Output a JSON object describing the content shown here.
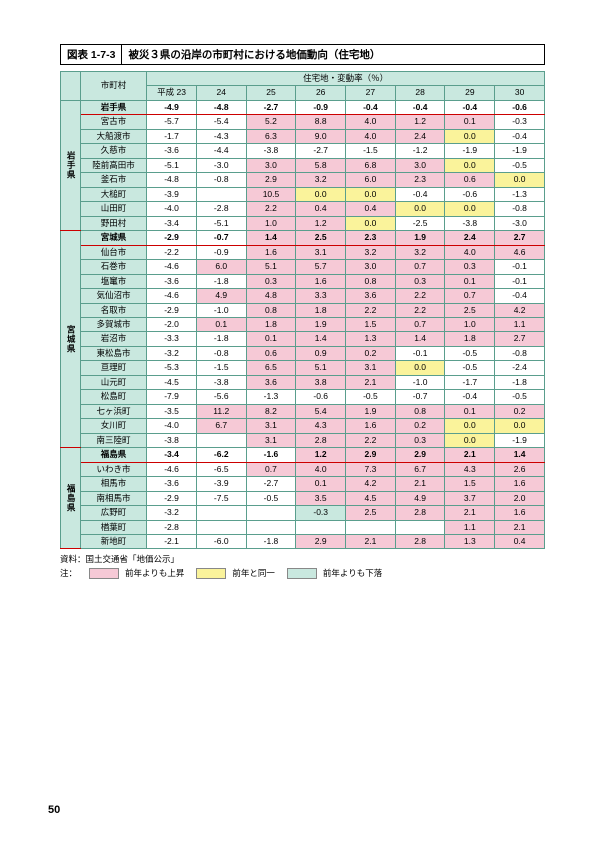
{
  "page_number": "50",
  "fig_no": "図表 1-7-3",
  "fig_title": "被災３県の沿岸の市町村における地価動向（住宅地）",
  "col_muni": "市町村",
  "col_group": "住宅地・変動率（％）",
  "years": [
    "平成 23",
    "24",
    "25",
    "26",
    "27",
    "28",
    "29",
    "30"
  ],
  "src": "資料：国土交通省「地価公示」",
  "legend_label": "注：",
  "legend_up": "前年よりも上昇",
  "legend_same": "前年と同一",
  "legend_down": "前年よりも下落",
  "colors": {
    "up": "#f6c9d6",
    "same": "#faf39b",
    "down": "#c9e8df"
  },
  "prefs": [
    {
      "name": "岩手県",
      "rows": [
        {
          "m": "岩手県",
          "bold": true,
          "red": true,
          "v": [
            [
              "-4.9",
              ""
            ],
            [
              "-4.8",
              ""
            ],
            [
              "-2.7",
              ""
            ],
            [
              "-0.9",
              ""
            ],
            [
              "-0.4",
              ""
            ],
            [
              "-0.4",
              ""
            ],
            [
              "-0.4",
              ""
            ],
            [
              "-0.6",
              ""
            ]
          ]
        },
        {
          "m": "宮古市",
          "v": [
            [
              "-5.7",
              ""
            ],
            [
              "-5.4",
              ""
            ],
            [
              "5.2",
              "p"
            ],
            [
              "8.8",
              "p"
            ],
            [
              "4.0",
              "p"
            ],
            [
              "1.2",
              "p"
            ],
            [
              "0.1",
              "p"
            ],
            [
              "-0.3",
              ""
            ]
          ]
        },
        {
          "m": "大船渡市",
          "v": [
            [
              "-1.7",
              ""
            ],
            [
              "-4.3",
              ""
            ],
            [
              "6.3",
              "p"
            ],
            [
              "9.0",
              "p"
            ],
            [
              "4.0",
              "p"
            ],
            [
              "2.4",
              "p"
            ],
            [
              "0.0",
              "y"
            ],
            [
              "-0.4",
              ""
            ]
          ]
        },
        {
          "m": "久慈市",
          "v": [
            [
              "-3.6",
              ""
            ],
            [
              "-4.4",
              ""
            ],
            [
              "-3.8",
              ""
            ],
            [
              "-2.7",
              ""
            ],
            [
              "-1.5",
              ""
            ],
            [
              "-1.2",
              ""
            ],
            [
              "-1.9",
              ""
            ],
            [
              "-1.9",
              ""
            ]
          ]
        },
        {
          "m": "陸前高田市",
          "v": [
            [
              "-5.1",
              ""
            ],
            [
              "-3.0",
              ""
            ],
            [
              "3.0",
              "p"
            ],
            [
              "5.8",
              "p"
            ],
            [
              "6.8",
              "p"
            ],
            [
              "3.0",
              "p"
            ],
            [
              "0.0",
              "y"
            ],
            [
              "-0.5",
              ""
            ]
          ]
        },
        {
          "m": "釜石市",
          "v": [
            [
              "-4.8",
              ""
            ],
            [
              "-0.8",
              ""
            ],
            [
              "2.9",
              "p"
            ],
            [
              "3.2",
              "p"
            ],
            [
              "6.0",
              "p"
            ],
            [
              "2.3",
              "p"
            ],
            [
              "0.6",
              "p"
            ],
            [
              "0.0",
              "y"
            ]
          ]
        },
        {
          "m": "大槌町",
          "v": [
            [
              "-3.9",
              ""
            ],
            [
              "",
              ""
            ],
            [
              "10.5",
              "p"
            ],
            [
              "0.0",
              "y"
            ],
            [
              "0.0",
              "y"
            ],
            [
              "-0.4",
              ""
            ],
            [
              "-0.6",
              ""
            ],
            [
              "-1.3",
              ""
            ]
          ]
        },
        {
          "m": "山田町",
          "v": [
            [
              "-4.0",
              ""
            ],
            [
              "-2.8",
              ""
            ],
            [
              "2.2",
              "p"
            ],
            [
              "0.4",
              "p"
            ],
            [
              "0.4",
              "p"
            ],
            [
              "0.0",
              "y"
            ],
            [
              "0.0",
              "y"
            ],
            [
              "-0.8",
              ""
            ]
          ]
        },
        {
          "m": "野田村",
          "v": [
            [
              "-3.4",
              ""
            ],
            [
              "-5.1",
              ""
            ],
            [
              "1.0",
              "p"
            ],
            [
              "1.2",
              "p"
            ],
            [
              "0.0",
              "y"
            ],
            [
              "-2.5",
              ""
            ],
            [
              "-3.8",
              ""
            ],
            [
              "-3.0",
              ""
            ]
          ]
        }
      ]
    },
    {
      "name": "宮城県",
      "rows": [
        {
          "m": "宮城県",
          "bold": true,
          "red": true,
          "v": [
            [
              "-2.9",
              ""
            ],
            [
              "-0.7",
              ""
            ],
            [
              "1.4",
              "p"
            ],
            [
              "2.5",
              "p"
            ],
            [
              "2.3",
              "p"
            ],
            [
              "1.9",
              "p"
            ],
            [
              "2.4",
              "p"
            ],
            [
              "2.7",
              "p"
            ]
          ]
        },
        {
          "m": "仙台市",
          "v": [
            [
              "-2.2",
              ""
            ],
            [
              "-0.9",
              ""
            ],
            [
              "1.6",
              "p"
            ],
            [
              "3.1",
              "p"
            ],
            [
              "3.2",
              "p"
            ],
            [
              "3.2",
              "p"
            ],
            [
              "4.0",
              "p"
            ],
            [
              "4.6",
              "p"
            ]
          ]
        },
        {
          "m": "石巻市",
          "v": [
            [
              "-4.6",
              ""
            ],
            [
              "6.0",
              "p"
            ],
            [
              "5.1",
              "p"
            ],
            [
              "5.7",
              "p"
            ],
            [
              "3.0",
              "p"
            ],
            [
              "0.7",
              "p"
            ],
            [
              "0.3",
              "p"
            ],
            [
              "-0.1",
              ""
            ]
          ]
        },
        {
          "m": "塩竃市",
          "v": [
            [
              "-3.6",
              ""
            ],
            [
              "-1.8",
              ""
            ],
            [
              "0.3",
              "p"
            ],
            [
              "1.6",
              "p"
            ],
            [
              "0.8",
              "p"
            ],
            [
              "0.3",
              "p"
            ],
            [
              "0.1",
              "p"
            ],
            [
              "-0.1",
              ""
            ]
          ]
        },
        {
          "m": "気仙沼市",
          "v": [
            [
              "-4.6",
              ""
            ],
            [
              "4.9",
              "p"
            ],
            [
              "4.8",
              "p"
            ],
            [
              "3.3",
              "p"
            ],
            [
              "3.6",
              "p"
            ],
            [
              "2.2",
              "p"
            ],
            [
              "0.7",
              "p"
            ],
            [
              "-0.4",
              ""
            ]
          ]
        },
        {
          "m": "名取市",
          "v": [
            [
              "-2.9",
              ""
            ],
            [
              "-1.0",
              ""
            ],
            [
              "0.8",
              "p"
            ],
            [
              "1.8",
              "p"
            ],
            [
              "2.2",
              "p"
            ],
            [
              "2.2",
              "p"
            ],
            [
              "2.5",
              "p"
            ],
            [
              "4.2",
              "p"
            ]
          ]
        },
        {
          "m": "多賀城市",
          "v": [
            [
              "-2.0",
              ""
            ],
            [
              "0.1",
              "p"
            ],
            [
              "1.8",
              "p"
            ],
            [
              "1.9",
              "p"
            ],
            [
              "1.5",
              "p"
            ],
            [
              "0.7",
              "p"
            ],
            [
              "1.0",
              "p"
            ],
            [
              "1.1",
              "p"
            ]
          ]
        },
        {
          "m": "岩沼市",
          "v": [
            [
              "-3.3",
              ""
            ],
            [
              "-1.8",
              ""
            ],
            [
              "0.1",
              "p"
            ],
            [
              "1.4",
              "p"
            ],
            [
              "1.3",
              "p"
            ],
            [
              "1.4",
              "p"
            ],
            [
              "1.8",
              "p"
            ],
            [
              "2.7",
              "p"
            ]
          ]
        },
        {
          "m": "東松島市",
          "v": [
            [
              "-3.2",
              ""
            ],
            [
              "-0.8",
              ""
            ],
            [
              "0.6",
              "p"
            ],
            [
              "0.9",
              "p"
            ],
            [
              "0.2",
              "p"
            ],
            [
              "-0.1",
              ""
            ],
            [
              "-0.5",
              ""
            ],
            [
              "-0.8",
              ""
            ]
          ]
        },
        {
          "m": "亘理町",
          "v": [
            [
              "-5.3",
              ""
            ],
            [
              "-1.5",
              ""
            ],
            [
              "6.5",
              "p"
            ],
            [
              "5.1",
              "p"
            ],
            [
              "3.1",
              "p"
            ],
            [
              "0.0",
              "y"
            ],
            [
              "-0.5",
              ""
            ],
            [
              "-2.4",
              ""
            ]
          ]
        },
        {
          "m": "山元町",
          "v": [
            [
              "-4.5",
              ""
            ],
            [
              "-3.8",
              ""
            ],
            [
              "3.6",
              "p"
            ],
            [
              "3.8",
              "p"
            ],
            [
              "2.1",
              "p"
            ],
            [
              "-1.0",
              ""
            ],
            [
              "-1.7",
              ""
            ],
            [
              "-1.8",
              ""
            ]
          ]
        },
        {
          "m": "松島町",
          "v": [
            [
              "-7.9",
              ""
            ],
            [
              "-5.6",
              ""
            ],
            [
              "-1.3",
              ""
            ],
            [
              "-0.6",
              ""
            ],
            [
              "-0.5",
              ""
            ],
            [
              "-0.7",
              ""
            ],
            [
              "-0.4",
              ""
            ],
            [
              "-0.5",
              ""
            ]
          ]
        },
        {
          "m": "七ヶ浜町",
          "v": [
            [
              "-3.5",
              ""
            ],
            [
              "11.2",
              "p"
            ],
            [
              "8.2",
              "p"
            ],
            [
              "5.4",
              "p"
            ],
            [
              "1.9",
              "p"
            ],
            [
              "0.8",
              "p"
            ],
            [
              "0.1",
              "p"
            ],
            [
              "0.2",
              "p"
            ]
          ]
        },
        {
          "m": "女川町",
          "v": [
            [
              "-4.0",
              ""
            ],
            [
              "6.7",
              "p"
            ],
            [
              "3.1",
              "p"
            ],
            [
              "4.3",
              "p"
            ],
            [
              "1.6",
              "p"
            ],
            [
              "0.2",
              "p"
            ],
            [
              "0.0",
              "y"
            ],
            [
              "0.0",
              "y"
            ]
          ]
        },
        {
          "m": "南三陸町",
          "v": [
            [
              "-3.8",
              ""
            ],
            [
              "",
              ""
            ],
            [
              "3.1",
              "p"
            ],
            [
              "2.8",
              "p"
            ],
            [
              "2.2",
              "p"
            ],
            [
              "0.3",
              "p"
            ],
            [
              "0.0",
              "y"
            ],
            [
              "-1.9",
              ""
            ]
          ]
        }
      ]
    },
    {
      "name": "福島県",
      "rows": [
        {
          "m": "福島県",
          "bold": true,
          "red": true,
          "v": [
            [
              "-3.4",
              ""
            ],
            [
              "-6.2",
              ""
            ],
            [
              "-1.6",
              ""
            ],
            [
              "1.2",
              "p"
            ],
            [
              "2.9",
              "p"
            ],
            [
              "2.9",
              "p"
            ],
            [
              "2.1",
              "p"
            ],
            [
              "1.4",
              "p"
            ]
          ]
        },
        {
          "m": "いわき市",
          "v": [
            [
              "-4.6",
              ""
            ],
            [
              "-6.5",
              ""
            ],
            [
              "0.7",
              "p"
            ],
            [
              "4.0",
              "p"
            ],
            [
              "7.3",
              "p"
            ],
            [
              "6.7",
              "p"
            ],
            [
              "4.3",
              "p"
            ],
            [
              "2.6",
              "p"
            ]
          ]
        },
        {
          "m": "相馬市",
          "v": [
            [
              "-3.6",
              ""
            ],
            [
              "-3.9",
              ""
            ],
            [
              "-2.7",
              ""
            ],
            [
              "0.1",
              "p"
            ],
            [
              "4.2",
              "p"
            ],
            [
              "2.1",
              "p"
            ],
            [
              "1.5",
              "p"
            ],
            [
              "1.6",
              "p"
            ]
          ]
        },
        {
          "m": "南相馬市",
          "v": [
            [
              "-2.9",
              ""
            ],
            [
              "-7.5",
              ""
            ],
            [
              "-0.5",
              ""
            ],
            [
              "3.5",
              "p"
            ],
            [
              "4.5",
              "p"
            ],
            [
              "4.9",
              "p"
            ],
            [
              "3.7",
              "p"
            ],
            [
              "2.0",
              "p"
            ]
          ]
        },
        {
          "m": "広野町",
          "v": [
            [
              "-3.2",
              ""
            ],
            [
              "",
              ""
            ],
            [
              "",
              ""
            ],
            [
              "-0.3",
              "g"
            ],
            [
              "2.5",
              "p"
            ],
            [
              "2.8",
              "p"
            ],
            [
              "2.1",
              "p"
            ],
            [
              "1.6",
              "p"
            ]
          ]
        },
        {
          "m": "楢葉町",
          "v": [
            [
              "-2.8",
              ""
            ],
            [
              "",
              ""
            ],
            [
              "",
              ""
            ],
            [
              "",
              ""
            ],
            [
              "",
              ""
            ],
            [
              "",
              ""
            ],
            [
              "1.1",
              "p"
            ],
            [
              "2.1",
              "p"
            ]
          ]
        },
        {
          "m": "新地町",
          "v": [
            [
              "-2.1",
              ""
            ],
            [
              "-6.0",
              ""
            ],
            [
              "-1.8",
              ""
            ],
            [
              "2.9",
              "p"
            ],
            [
              "2.1",
              "p"
            ],
            [
              "2.8",
              "p"
            ],
            [
              "1.3",
              "p"
            ],
            [
              "0.4",
              "p"
            ]
          ]
        }
      ]
    }
  ]
}
